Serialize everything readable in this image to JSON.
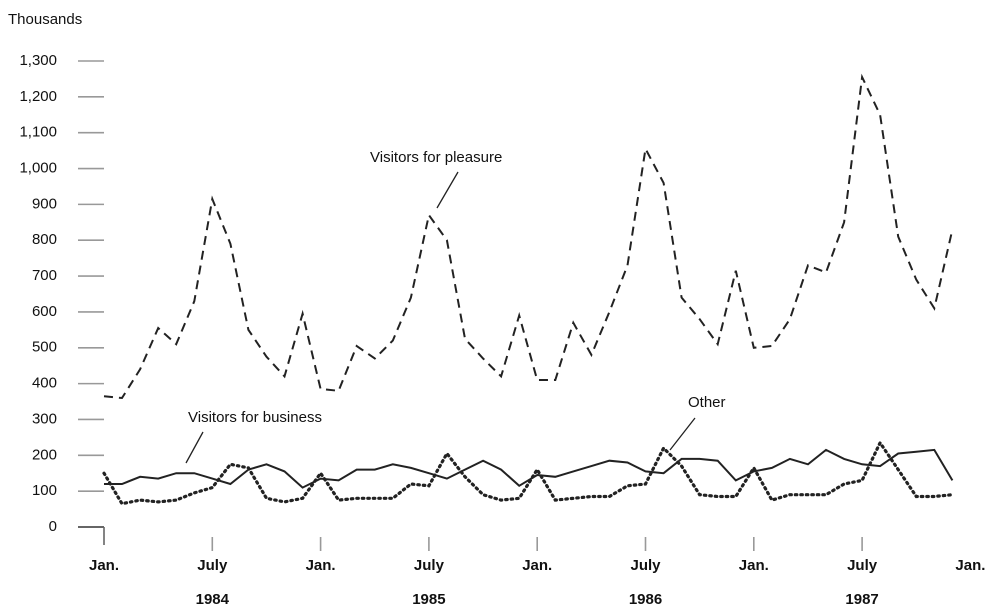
{
  "chart_data": {
    "type": "line",
    "y_label": "Thousands",
    "categories": [
      "Jan.",
      null,
      null,
      null,
      null,
      null,
      "July",
      null,
      null,
      null,
      null,
      null,
      "Jan.",
      null,
      null,
      null,
      null,
      null,
      "July",
      null,
      null,
      null,
      null,
      null,
      "Jan.",
      null,
      null,
      null,
      null,
      null,
      "July",
      null,
      null,
      null,
      null,
      null,
      "Jan.",
      null,
      null,
      null,
      null,
      null,
      "July",
      null,
      null,
      null,
      null,
      null,
      "Jan."
    ],
    "year_labels": [
      "1984",
      "1985",
      "1986",
      "1987"
    ],
    "ylim": [
      0,
      1300
    ],
    "yticks": [
      0,
      100,
      200,
      300,
      400,
      500,
      600,
      700,
      800,
      900,
      {
        "value": 1000,
        "label": "1,000"
      },
      {
        "value": 1100,
        "label": "1,100"
      },
      {
        "value": 1200,
        "label": "1,200"
      },
      {
        "value": 1300,
        "label": "1,300"
      }
    ],
    "series": [
      {
        "name": "Visitors for pleasure",
        "color": "#222",
        "style": "dashed",
        "values": [
          365,
          360,
          440,
          555,
          510,
          630,
          915,
          790,
          550,
          475,
          420,
          595,
          385,
          380,
          505,
          470,
          520,
          640,
          870,
          800,
          525,
          470,
          420,
          590,
          410,
          410,
          570,
          480,
          600,
          730,
          1055,
          960,
          640,
          580,
          510,
          715,
          500,
          505,
          580,
          730,
          710,
          850,
          1255,
          1150,
          810,
          690,
          610,
          830,
          null
        ]
      },
      {
        "name": "Visitors for business",
        "color": "#222",
        "style": "solid",
        "values": [
          120,
          120,
          140,
          135,
          150,
          150,
          135,
          120,
          160,
          175,
          155,
          110,
          135,
          130,
          160,
          160,
          175,
          165,
          150,
          135,
          160,
          185,
          160,
          115,
          145,
          140,
          155,
          170,
          185,
          180,
          155,
          150,
          190,
          190,
          185,
          130,
          155,
          165,
          190,
          175,
          215,
          190,
          175,
          170,
          205,
          210,
          215,
          130,
          null
        ]
      },
      {
        "name": "Other",
        "color": "#222",
        "style": "dotted",
        "values": [
          150,
          65,
          75,
          70,
          75,
          95,
          110,
          175,
          165,
          80,
          70,
          80,
          150,
          75,
          80,
          80,
          80,
          120,
          115,
          205,
          140,
          90,
          75,
          80,
          160,
          75,
          80,
          85,
          85,
          115,
          120,
          220,
          170,
          90,
          85,
          85,
          165,
          75,
          90,
          90,
          90,
          120,
          130,
          235,
          160,
          85,
          85,
          90,
          null
        ]
      }
    ]
  }
}
